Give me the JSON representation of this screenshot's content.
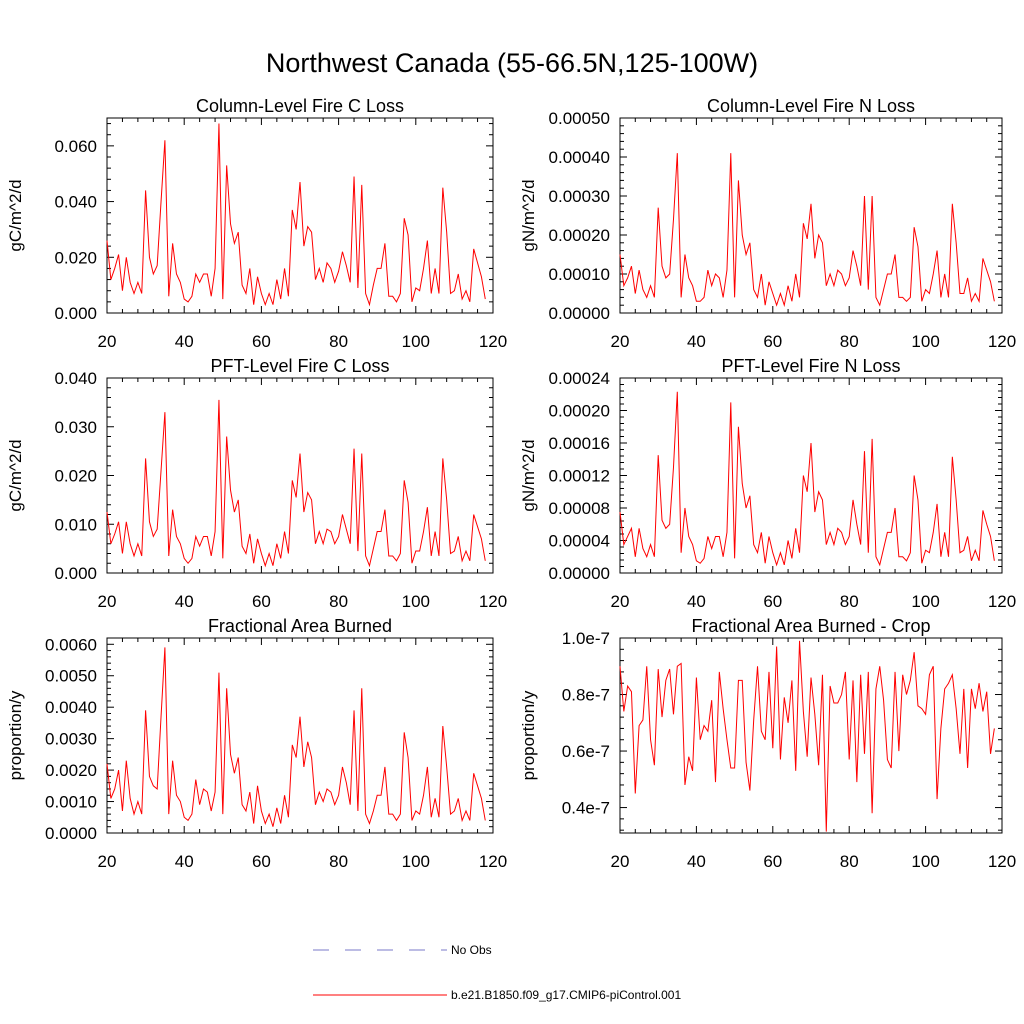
{
  "figure": {
    "title": "Northwest Canada (55-66.5N,125-100W)"
  },
  "legend": {
    "entries": [
      {
        "label": "No Obs",
        "color": "#7878c8",
        "style": "dashed"
      },
      {
        "label": "b.e21.B1850.f09_g17.CMIP6-piControl.001",
        "color": "#ff0000",
        "style": "solid"
      }
    ]
  },
  "colors": {
    "series": "#ff0000",
    "axis": "#000000"
  },
  "chart_data": [
    {
      "id": "col-c",
      "type": "line",
      "title": "Column-Level Fire C Loss",
      "xlabel": "",
      "ylabel": "gC/m^2/d",
      "xlim": [
        20,
        120
      ],
      "ylim": [
        0,
        0.07
      ],
      "xticks": [
        20,
        40,
        60,
        80,
        100,
        120
      ],
      "xtick_labels": [
        "20",
        "40",
        "60",
        "80",
        "100",
        "120"
      ],
      "yticks": [
        0,
        0.02,
        0.04,
        0.06
      ],
      "ytick_labels": [
        "0.000",
        "0.020",
        "0.040",
        "0.060"
      ],
      "x_start": 20,
      "series": [
        {
          "name": "b.e21.B1850.f09_g17.CMIP6-piControl.001",
          "values": [
            0.026,
            0.012,
            0.016,
            0.021,
            0.008,
            0.02,
            0.011,
            0.007,
            0.011,
            0.007,
            0.044,
            0.02,
            0.014,
            0.017,
            0.04,
            0.062,
            0.006,
            0.025,
            0.014,
            0.011,
            0.005,
            0.004,
            0.006,
            0.014,
            0.011,
            0.014,
            0.014,
            0.006,
            0.016,
            0.068,
            0.005,
            0.053,
            0.032,
            0.025,
            0.029,
            0.01,
            0.007,
            0.016,
            0.003,
            0.013,
            0.007,
            0.003,
            0.007,
            0.003,
            0.012,
            0.005,
            0.016,
            0.006,
            0.037,
            0.03,
            0.047,
            0.024,
            0.031,
            0.029,
            0.012,
            0.016,
            0.011,
            0.018,
            0.016,
            0.011,
            0.015,
            0.022,
            0.017,
            0.011,
            0.049,
            0.009,
            0.046,
            0.007,
            0.003,
            0.01,
            0.016,
            0.016,
            0.025,
            0.006,
            0.006,
            0.004,
            0.007,
            0.034,
            0.028,
            0.004,
            0.009,
            0.008,
            0.016,
            0.026,
            0.007,
            0.016,
            0.007,
            0.045,
            0.029,
            0.007,
            0.008,
            0.014,
            0.005,
            0.008,
            0.004,
            0.023,
            0.018,
            0.013,
            0.005
          ]
        }
      ]
    },
    {
      "id": "col-n",
      "type": "line",
      "title": "Column-Level Fire N Loss",
      "xlabel": "",
      "ylabel": "gN/m^2/d",
      "xlim": [
        20,
        120
      ],
      "ylim": [
        0,
        0.0005
      ],
      "xticks": [
        20,
        40,
        60,
        80,
        100,
        120
      ],
      "xtick_labels": [
        "20",
        "40",
        "60",
        "80",
        "100",
        "120"
      ],
      "yticks": [
        0,
        0.0001,
        0.0002,
        0.0003,
        0.0004,
        0.0005
      ],
      "ytick_labels": [
        "0.00000",
        "0.00010",
        "0.00020",
        "0.00030",
        "0.00040",
        "0.00050"
      ],
      "x_start": 20,
      "series": [
        {
          "name": "b.e21.B1850.f09_g17.CMIP6-piControl.001",
          "values": [
            0.00015,
            7e-05,
            9e-05,
            0.00012,
            5e-05,
            0.00011,
            6e-05,
            4e-05,
            7e-05,
            4e-05,
            0.00027,
            0.00012,
            9e-05,
            0.0001,
            0.00024,
            0.00041,
            4e-05,
            0.00015,
            9e-05,
            7e-05,
            3e-05,
            3e-05,
            4e-05,
            0.00011,
            7e-05,
            0.0001,
            9e-05,
            4e-05,
            0.00011,
            0.00041,
            4e-05,
            0.00034,
            0.0002,
            0.00015,
            0.00018,
            6e-05,
            4e-05,
            0.0001,
            2e-05,
            8e-05,
            5e-05,
            2e-05,
            5e-05,
            2e-05,
            7e-05,
            3e-05,
            0.0001,
            4e-05,
            0.00023,
            0.00019,
            0.00028,
            0.00014,
            0.0002,
            0.00018,
            7e-05,
            0.0001,
            7e-05,
            0.00011,
            0.0001,
            7e-05,
            9e-05,
            0.00016,
            0.00012,
            7e-05,
            0.0003,
            6e-05,
            0.0003,
            4e-05,
            2e-05,
            6e-05,
            0.0001,
            0.0001,
            0.00015,
            4e-05,
            4e-05,
            3e-05,
            4e-05,
            0.00022,
            0.00017,
            3e-05,
            6e-05,
            5e-05,
            0.0001,
            0.00016,
            4e-05,
            0.0001,
            4e-05,
            0.00028,
            0.00018,
            5e-05,
            5e-05,
            9e-05,
            3e-05,
            5e-05,
            3e-05,
            0.00014,
            0.00011,
            8e-05,
            3e-05
          ]
        }
      ]
    },
    {
      "id": "pft-c",
      "type": "line",
      "title": "PFT-Level Fire C Loss",
      "xlabel": "",
      "ylabel": "gC/m^2/d",
      "xlim": [
        20,
        120
      ],
      "ylim": [
        0,
        0.04
      ],
      "xticks": [
        20,
        40,
        60,
        80,
        100,
        120
      ],
      "xtick_labels": [
        "20",
        "40",
        "60",
        "80",
        "100",
        "120"
      ],
      "yticks": [
        0,
        0.01,
        0.02,
        0.03,
        0.04
      ],
      "ytick_labels": [
        "0.000",
        "0.010",
        "0.020",
        "0.030",
        "0.040"
      ],
      "x_start": 20,
      "series": [
        {
          "name": "b.e21.B1850.f09_g17.CMIP6-piControl.001",
          "values": [
            0.0125,
            0.006,
            0.008,
            0.0105,
            0.004,
            0.0105,
            0.006,
            0.0035,
            0.006,
            0.0035,
            0.0235,
            0.0105,
            0.0075,
            0.009,
            0.021,
            0.033,
            0.0035,
            0.013,
            0.0075,
            0.006,
            0.003,
            0.002,
            0.003,
            0.0075,
            0.0055,
            0.0075,
            0.0075,
            0.0035,
            0.0085,
            0.0355,
            0.003,
            0.028,
            0.017,
            0.0125,
            0.015,
            0.0055,
            0.004,
            0.008,
            0.002,
            0.007,
            0.004,
            0.0015,
            0.004,
            0.0015,
            0.006,
            0.003,
            0.0085,
            0.004,
            0.019,
            0.0155,
            0.0245,
            0.0125,
            0.0165,
            0.015,
            0.006,
            0.0085,
            0.006,
            0.009,
            0.0085,
            0.006,
            0.0075,
            0.012,
            0.009,
            0.006,
            0.0255,
            0.0045,
            0.0245,
            0.0035,
            0.0015,
            0.005,
            0.0085,
            0.0085,
            0.013,
            0.0035,
            0.0035,
            0.0025,
            0.004,
            0.019,
            0.0145,
            0.002,
            0.0045,
            0.0045,
            0.0085,
            0.0135,
            0.0035,
            0.0085,
            0.0035,
            0.0235,
            0.015,
            0.004,
            0.0045,
            0.0075,
            0.0025,
            0.0045,
            0.0025,
            0.012,
            0.0095,
            0.007,
            0.0025
          ]
        }
      ]
    },
    {
      "id": "pft-n",
      "type": "line",
      "title": "PFT-Level Fire N Loss",
      "xlabel": "",
      "ylabel": "gN/m^2/d",
      "xlim": [
        20,
        120
      ],
      "ylim": [
        0,
        0.00024
      ],
      "xticks": [
        20,
        40,
        60,
        80,
        100,
        120
      ],
      "xtick_labels": [
        "20",
        "40",
        "60",
        "80",
        "100",
        "120"
      ],
      "yticks": [
        0,
        4e-05,
        8e-05,
        0.00012,
        0.00016,
        0.0002,
        0.00024
      ],
      "ytick_labels": [
        "0.00000",
        "0.00004",
        "0.00008",
        "0.00012",
        "0.00016",
        "0.00020",
        "0.00024"
      ],
      "x_start": 20,
      "series": [
        {
          "name": "b.e21.B1850.f09_g17.CMIP6-piControl.001",
          "values": [
            7.5e-05,
            3.5e-05,
            4.5e-05,
            5.5e-05,
            2e-05,
            5.5e-05,
            3e-05,
            2e-05,
            3.5e-05,
            2e-05,
            0.000145,
            6.5e-05,
            5.5e-05,
            6e-05,
            0.00013,
            0.000223,
            2.5e-05,
            8e-05,
            4.5e-05,
            3.5e-05,
            1.5e-05,
            1.2e-05,
            1.8e-05,
            4.5e-05,
            3e-05,
            4.5e-05,
            4.5e-05,
            2e-05,
            5e-05,
            0.00021,
            1.8e-05,
            0.00018,
            0.00011,
            8e-05,
            9.5e-05,
            3.5e-05,
            2.5e-05,
            5e-05,
            1.2e-05,
            4.5e-05,
            2.5e-05,
            1e-05,
            2.5e-05,
            1e-05,
            4e-05,
            1.8e-05,
            5.5e-05,
            2.5e-05,
            0.00012,
            0.0001,
            0.00016,
            7.5e-05,
            0.0001,
            9e-05,
            3.5e-05,
            5e-05,
            3.5e-05,
            5.5e-05,
            5e-05,
            3.5e-05,
            4.5e-05,
            9e-05,
            6e-05,
            3.5e-05,
            0.00015,
            2.5e-05,
            0.000165,
            2e-05,
            1e-05,
            3e-05,
            5e-05,
            5e-05,
            8e-05,
            2e-05,
            2e-05,
            1.5e-05,
            2.5e-05,
            0.00012,
            9e-05,
            1.2e-05,
            2.8e-05,
            2.5e-05,
            5e-05,
            8.5e-05,
            2e-05,
            5e-05,
            2e-05,
            0.000143,
            9e-05,
            2.5e-05,
            2.8e-05,
            4.5e-05,
            1.5e-05,
            2.8e-05,
            1.5e-05,
            7.7e-05,
            6e-05,
            4.5e-05,
            1.5e-05
          ]
        }
      ]
    },
    {
      "id": "area",
      "type": "line",
      "title": "Fractional Area Burned",
      "xlabel": "",
      "ylabel": "proportion/y",
      "xlim": [
        20,
        120
      ],
      "ylim": [
        0,
        0.0062
      ],
      "xticks": [
        20,
        40,
        60,
        80,
        100,
        120
      ],
      "xtick_labels": [
        "20",
        "40",
        "60",
        "80",
        "100",
        "120"
      ],
      "yticks": [
        0,
        0.001,
        0.002,
        0.003,
        0.004,
        0.005,
        0.006
      ],
      "ytick_labels": [
        "0.0000",
        "0.0010",
        "0.0020",
        "0.0030",
        "0.0040",
        "0.0050",
        "0.0060"
      ],
      "x_start": 20,
      "series": [
        {
          "name": "b.e21.B1850.f09_g17.CMIP6-piControl.001",
          "values": [
            0.0022,
            0.0011,
            0.0014,
            0.002,
            0.0007,
            0.0023,
            0.0011,
            0.0006,
            0.001,
            0.0006,
            0.0039,
            0.0018,
            0.0015,
            0.0014,
            0.0037,
            0.0059,
            0.0006,
            0.0023,
            0.0012,
            0.001,
            0.0005,
            0.0004,
            0.0006,
            0.0017,
            0.0009,
            0.0014,
            0.0013,
            0.0007,
            0.0013,
            0.0051,
            0.0006,
            0.0046,
            0.0025,
            0.0019,
            0.0024,
            0.0009,
            0.0007,
            0.0013,
            0.0003,
            0.0015,
            0.0007,
            0.0003,
            0.0006,
            0.0002,
            0.0008,
            0.0003,
            0.0012,
            0.0005,
            0.0028,
            0.0024,
            0.0037,
            0.0021,
            0.0029,
            0.0024,
            0.0009,
            0.0013,
            0.001,
            0.0014,
            0.0013,
            0.0009,
            0.0012,
            0.0021,
            0.0016,
            0.0009,
            0.0039,
            0.0007,
            0.0046,
            0.0006,
            0.0003,
            0.0007,
            0.0012,
            0.0012,
            0.0021,
            0.0006,
            0.0006,
            0.0004,
            0.0006,
            0.0032,
            0.0024,
            0.0004,
            0.0007,
            0.0006,
            0.0012,
            0.0021,
            0.0005,
            0.0011,
            0.0005,
            0.0034,
            0.0021,
            0.0006,
            0.0007,
            0.0011,
            0.0004,
            0.0007,
            0.0004,
            0.0019,
            0.0015,
            0.0011,
            0.0004
          ]
        }
      ]
    },
    {
      "id": "crop",
      "type": "line",
      "title": "Fractional Area Burned - Crop",
      "xlabel": "",
      "ylabel": "proportion/y",
      "xlim": [
        20,
        120
      ],
      "ylim": [
        3.1e-08,
        1e-07
      ],
      "xticks": [
        20,
        40,
        60,
        80,
        100,
        120
      ],
      "xtick_labels": [
        "20",
        "40",
        "60",
        "80",
        "100",
        "120"
      ],
      "yticks": [
        4e-08,
        6e-08,
        8e-08,
        1e-07
      ],
      "ytick_labels": [
        "0.4e-7",
        "0.6e-7",
        "0.8e-7",
        "1.0e-7"
      ],
      "x_start": 20,
      "series": [
        {
          "name": "b.e21.B1850.f09_g17.CMIP6-piControl.001",
          "values": [
            9e-08,
            7.4e-08,
            8.3e-08,
            8.1e-08,
            4.5e-08,
            6.9e-08,
            7.1e-08,
            9e-08,
            6.4e-08,
            5.5e-08,
            8.9e-08,
            7.2e-08,
            8.5e-08,
            8.9e-08,
            7.3e-08,
            9e-08,
            9.1e-08,
            4.8e-08,
            5.8e-08,
            5.3e-08,
            8.6e-08,
            6.4e-08,
            6.9e-08,
            6.7e-08,
            7.8e-08,
            4.9e-08,
            8.8e-08,
            7.5e-08,
            6.4e-08,
            5.4e-08,
            5.4e-08,
            8.5e-08,
            8.5e-08,
            5.6e-08,
            4.6e-08,
            7.1e-08,
            9e-08,
            6.7e-08,
            6.4e-08,
            8.8e-08,
            6.1e-08,
            9.7e-08,
            5.7e-08,
            7.9e-08,
            7e-08,
            8.5e-08,
            5.3e-08,
            9.9e-08,
            7.4e-08,
            5.8e-08,
            8.6e-08,
            7.3e-08,
            5.5e-08,
            8.7e-08,
            3.15e-08,
            8.3e-08,
            7.7e-08,
            7.7e-08,
            8e-08,
            8.8e-08,
            5.7e-08,
            8.5e-08,
            4.9e-08,
            8.7e-08,
            5.9e-08,
            8.8e-08,
            3.8e-08,
            8.2e-08,
            9e-08,
            7.8e-08,
            5.7e-08,
            5.4e-08,
            8.8e-08,
            6e-08,
            8.7e-08,
            8e-08,
            8.5e-08,
            9.5e-08,
            7.6e-08,
            7.5e-08,
            7.3e-08,
            8.7e-08,
            9e-08,
            4.3e-08,
            6.8e-08,
            8.2e-08,
            8.4e-08,
            8.7e-08,
            7.5e-08,
            5.9e-08,
            8.2e-08,
            5.4e-08,
            8.2e-08,
            7.5e-08,
            8.4e-08,
            7.4e-08,
            8.1e-08,
            5.9e-08,
            6.8e-08
          ]
        }
      ]
    }
  ]
}
